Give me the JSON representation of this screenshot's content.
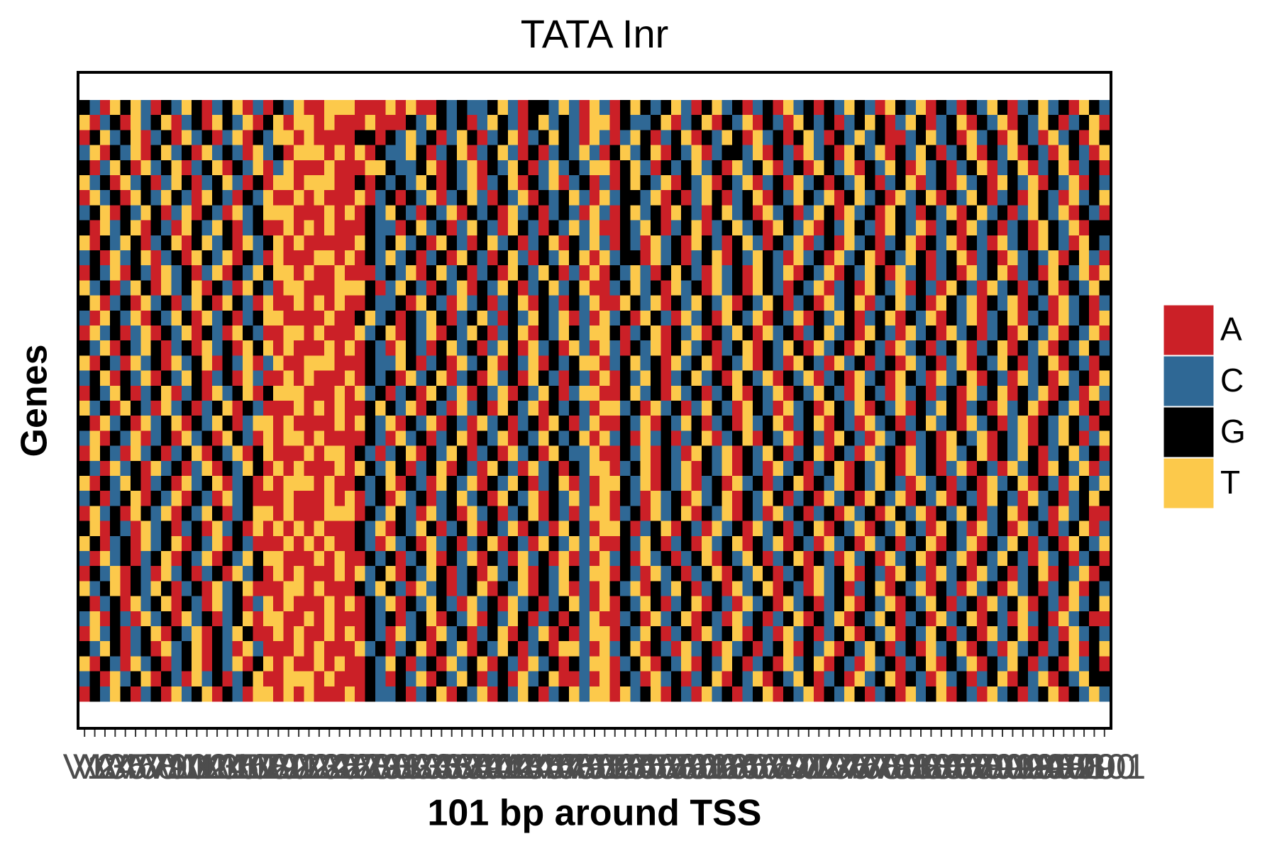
{
  "chart_data": {
    "type": "heatmap",
    "title": "TATA Inr",
    "xlabel": "101 bp around TSS",
    "ylabel": "Genes",
    "levels": [
      "A",
      "C",
      "G",
      "T"
    ],
    "colors": {
      "A": "#cb2027",
      "C": "#2f6895",
      "G": "#000000",
      "T": "#fcc94b"
    },
    "categories": [
      "V1",
      "V2",
      "V3",
      "V4",
      "V5",
      "V6",
      "V7",
      "V8",
      "V9",
      "V10",
      "V11",
      "V12",
      "V13",
      "V14",
      "V15",
      "V16",
      "V17",
      "V18",
      "V19",
      "V20",
      "V21",
      "V22",
      "V23",
      "V24",
      "V25",
      "V26",
      "V27",
      "V28",
      "V29",
      "V30",
      "V31",
      "V32",
      "V33",
      "V34",
      "V35",
      "V36",
      "V37",
      "V38",
      "V39",
      "V40",
      "V41",
      "V42",
      "V43",
      "V44",
      "V45",
      "V46",
      "V47",
      "V48",
      "V49",
      "V50",
      "V51",
      "V52",
      "V53",
      "V54",
      "V55",
      "V56",
      "V57",
      "V58",
      "V59",
      "V60",
      "V61",
      "V62",
      "V63",
      "V64",
      "V65",
      "V66",
      "V67",
      "V68",
      "V69",
      "V70",
      "V71",
      "V72",
      "V73",
      "V74",
      "V75",
      "V76",
      "V77",
      "V78",
      "V79",
      "V80",
      "V81",
      "V82",
      "V83",
      "V84",
      "V85",
      "V86",
      "V87",
      "V88",
      "V89",
      "V90",
      "V91",
      "V92",
      "V93",
      "V94",
      "V95",
      "V96",
      "V97",
      "V98",
      "V99",
      "V100",
      "V101"
    ],
    "sequences": [
      "GCATGTCAGCTGACGTACAGCTAATTTAAATATAAGCGCCGTCAGGCTCATCAGTGCGTCAGTCGACGATCGAGCTGCATGCTAGCAGCTGACGTCGATGC",
      "TACGATCGTACGATGCTAGTATTATAAATAAAGCTGCGACTGCAGTCGCATTAGCCGTACGTAGCTAGCATGCGACGTGACTGACGTAGCTAGCTGACGTA",
      "AGTCGTACGATCGACTAGCTTATAAAAGGAGCTCGACTGACGTACGTGCATCACTGACGTAGCTGATCGAGTCAGCTCGAACGTCGATCGATGCATCGATG",
      "CTAGCTAGTCGATCGCATCGATTTATATAGCCTGACGTACGTCAGACGCTCAGTCGTAGCTACGGCTAGCATCGATGCTAGCTGACGTAGCTAGCATGCAT",
      "GACTGATCGTACGTAGCTACTAAATAAATTGCCGTAGCTAGCTGACTCGCTTAGTCAGCGTCGATCGTACGATGCTAGCTGATCGACGTACGTACGTACGA",
      "TCGATCGACTGACGTCAGATTATTTAAGAGCGCTGAGCTACGTAGCTACGACAGTGCTAGCTAGCTACGATCGAGCTGACGTACGATCGATGCTAGCTAGC",
      "ATCGATGCTGCATGCAGCTAATATAAATACGAGCTACGTCAGCTAGCGTCATCGGCTAGACTGACGTAGCTGCTAGTCGATCGTAGCTGACGATGCATCGT",
      "CGTAGCTGACTAGCATCGTTTAAATATAGCTGCAGCTAGCGATCGACGCATCAGTCGATGCAGTCGATCGACTGATCGATGCAGCTAGTCGACTGCTAGCA",
      "GATCGTAGCATGCTGACGAATATATAAAGCCAGTCGACTGCATGCAGCTCTAAGCTGACGTACGTCGATGCTAGCTGCATGCTACGATCGACGATGCTAGG",
      "TAGCTGACGTAGTCGATCGTATAAAAATGCGTCGATGCAGTCGACGTAGCTCAGCATCGATGCAGTCAGCTACGATCGACGTAGCTAGCATCGATGCATGC",
      "CGATCGTACGATGCTAGCATAAATTATAGCTCGACGATGCAGTCAGCTGTATCGGATCGACGTAGCTGCATCGATCGTAGCTGACGTACGATCGCTAGTCA",
      "AGCTAGCATCGACTAGCTGTTATAATAAACGCTAGTCGACGATGCTGACATAGCTCAGTGCATCGATGCTAGCTAGCTGATCGACGATCGTACGATGCTAT",
      "TCGACTGATCGTAGCATGCATTAAATTTGACTGCAGCTAGCTGACGTCGTAACGTCGATCGATCGATGCAGCTACGATGCTAGCATGCATCGACGTAGCTG",
      "GTACGATCGACTGATGCATAATATATAAGCCGATGCATCGACGTAGCAGCTAATGCTAGCTGCTAGCTGACGATCGTACGTCGATGCTAGCTAGCATCGAC",
      "CATGCTAGCTGATCGACGTTAAAATAAGTCGAGCTGACGTCAGCTGCTACATCGATGCATCGATGCTAGCTAGCTGACGTAGCTAGCTACGTACGATCGAT",
      "ATCGACTAGCTAGCATGCAATTATAAATCGTAGCTAGCTGACGTAGCTGCTTGACGTAGCTAGCTGATCGACGTCGATGCATCGATCGACGATGCTAGCTA",
      "GCTAGCTGACGATCGATGTATAAATATAGCATGCAGTCGACTGATCGATCATCAGCTAGTCGACGTAGCTGATCGATGCATCGACGTACGTAGCTAGCTGC",
      "TAGCATCGATCGTAGCTACTAATTTAAAGCCTGACGATCGTAGCTAGCGTTACGTCGATCGTAGCTAGCATGCATCGACGATCGACTAGCTGACGTAGCAG",
      "CGTAGCTAGCTGACGATCAATATAAATAGCGATCGTACGATCGATGCAGCATAGCTGACGTCGATGCTAGCTACGATCGATGCATCGTAGCATCGATCGAT",
      "AGCTGACGTACGATCGTAGTTTAAATATCGACGATGCTAGCTAGCTGACTTAAGTCGATCGACGTAGCTAGCTGCATGCATCGACGATCGTAGCTAGCATC",
      "TCGATGCATCGACGTAGCAAATATATAAGTGCTAGCATCGATGCTAGCGCATTCGATCGACTGCATGCATCGATGCTAGCTAGCTGACGATCGTAGCTAGA",
      "GATCGATCGTAGCTGACTTATAAAATATGCTAGCTAGCATCGACGATGACTAAGCTAGCTGACGATCGTACGTAGCATCGACGTCGATCGACTAGCTGCAG",
      "CTAGCTACGATCGATGCATATTATAAAAGCATCGACGTAGCTAGCTGCGTATCGATCGACGTACGTAGCTAGCATGCATCGACGATGCTAGCTAGCTGACT",
      "ATGCATCGACGTAGCTAGTAAATATTAGCACGTAGCTGACGATCGATGCCTAAGCTAGCATGCTAGCTGACGTAGCATCGATCGATCGTAGCTGACGTCGA",
      "GCATCGATCGACTAGCTGATATAAATATGCTGACGTAGCATGCATCGAGCTTACGTAGCTAGCTAGCATCGACGTAGCTGATCGACTAGCATCGATGCTAC",
      "TAGCTGACGATCGTACGATATTTATAAGCGTAGCATGCTAGCTGACGTACATTGCTAGCTACGATCGACGTAGCTAGCTGCATCGACGATCGTAGCATGCT",
      "CGACGTAGCTAGCATCGAAATAAATATACGATCGACGTCGATGCTAGCTCATAGCATCGATCGTAGCTGACGATCGATGCTAGCTAGCATGCATCGACGTG",
      "ATCGATGCTAGCTGACGTTATAAATTTAGCTGCATCGATCGACGTAGCACTTACGATCGTAGCTAGCATCGACGATCGATGCTAGCTGACGTAGCATCGAA",
      "GTAGCATCGACGATCGATATATATAAAGCTAGCTGACGTAGCTAGCATGCATTGACGTAGCATCGATCGACGTAGCTAGCTGCATGCATCGATCGACGTAC",
      "TGACGATCGTAGCTAGCAAATATATAAGCATCGATCGACGTAGCATGCTCTAAGCTGACGATCGTAGCTAGCATCGATCGACGTAGCTAGCTGACGATGCT",
      "CATCGACGTAGCTAGCTGTTAAATATAAGCGACGTAGCTAGCATCGATACATCGATCGACGTAGCTGACGTAGCATCGATCGTAGCTAGCTGCATCGACGA",
      "AGCTAGCATCGACGATCGATATAAATATCGTAGCTGACGATCGTAGCTGCTTAGCATCGACGTAGCTGACGATCGTAGCATGCATCGATCGACGTAGCTAG",
      "TCGTAGCTGACGATCGTAAATTATAAAGCTGCATCGACGTAGCTAGCTACATGCTAGCTGACGATCGTAGCATCGACGTAGCTAGCATCGATCGACGTAGC",
      "GACGATCGTAGCATCGACTATAAATATAGCTAGCTGCATCGATCGACGTCATAGCTGACGTAGCATCGATCGACGTAGCTAGCTGACGATCGTAGCATCGT",
      "CTAGCATCGATCGACGTATTAATATAAAGCGACGTAGCTAGCTGACGAGCTAACGATCGTAGCATCGACGTAGCTAGCTGACGATCGTAGCATCGATCGAA",
      "ATCGACGTAGCTAGCTGAATATAATATAGCATCGATCGACGTAGCTAGACTTAGCTGACGATCGTAGCATCGACGTAGCTAGCTGACGATCGTAGCATCGC",
      "GCTGACGATCGTAGCATCAAATATAAATCGACGTAGCTAGCTGACGATTCATCGTAGCATCGATCGACGTAGCTAGCTGACGATCGTAGCATCGACGTAGT",
      "TAGCATCGACGTAGCTAGTATAATATAAGCTGACGATCGTAGCATCGAGCTTACGTAGCTAGCTGACGATCGTAGCATCGACGTAGCTAGCTGACGATCGA",
      "CGATCGTAGCATCGACGTAATTTATAAAGCAGCTAGCTGACGATCGTAACATAGCATCGACGTAGCTAGCTGACGATCGTAGCATCGACGTAGCTAGCTGG",
      "AGCTGACGATCGTAGCATTATATAAATAGCCGACGTAGCTAGCTGACGTCTTATCGTAGCATCGACGTAGCTAGCTGACGATCGTAGCATCGACGTAGCTC"
    ]
  }
}
